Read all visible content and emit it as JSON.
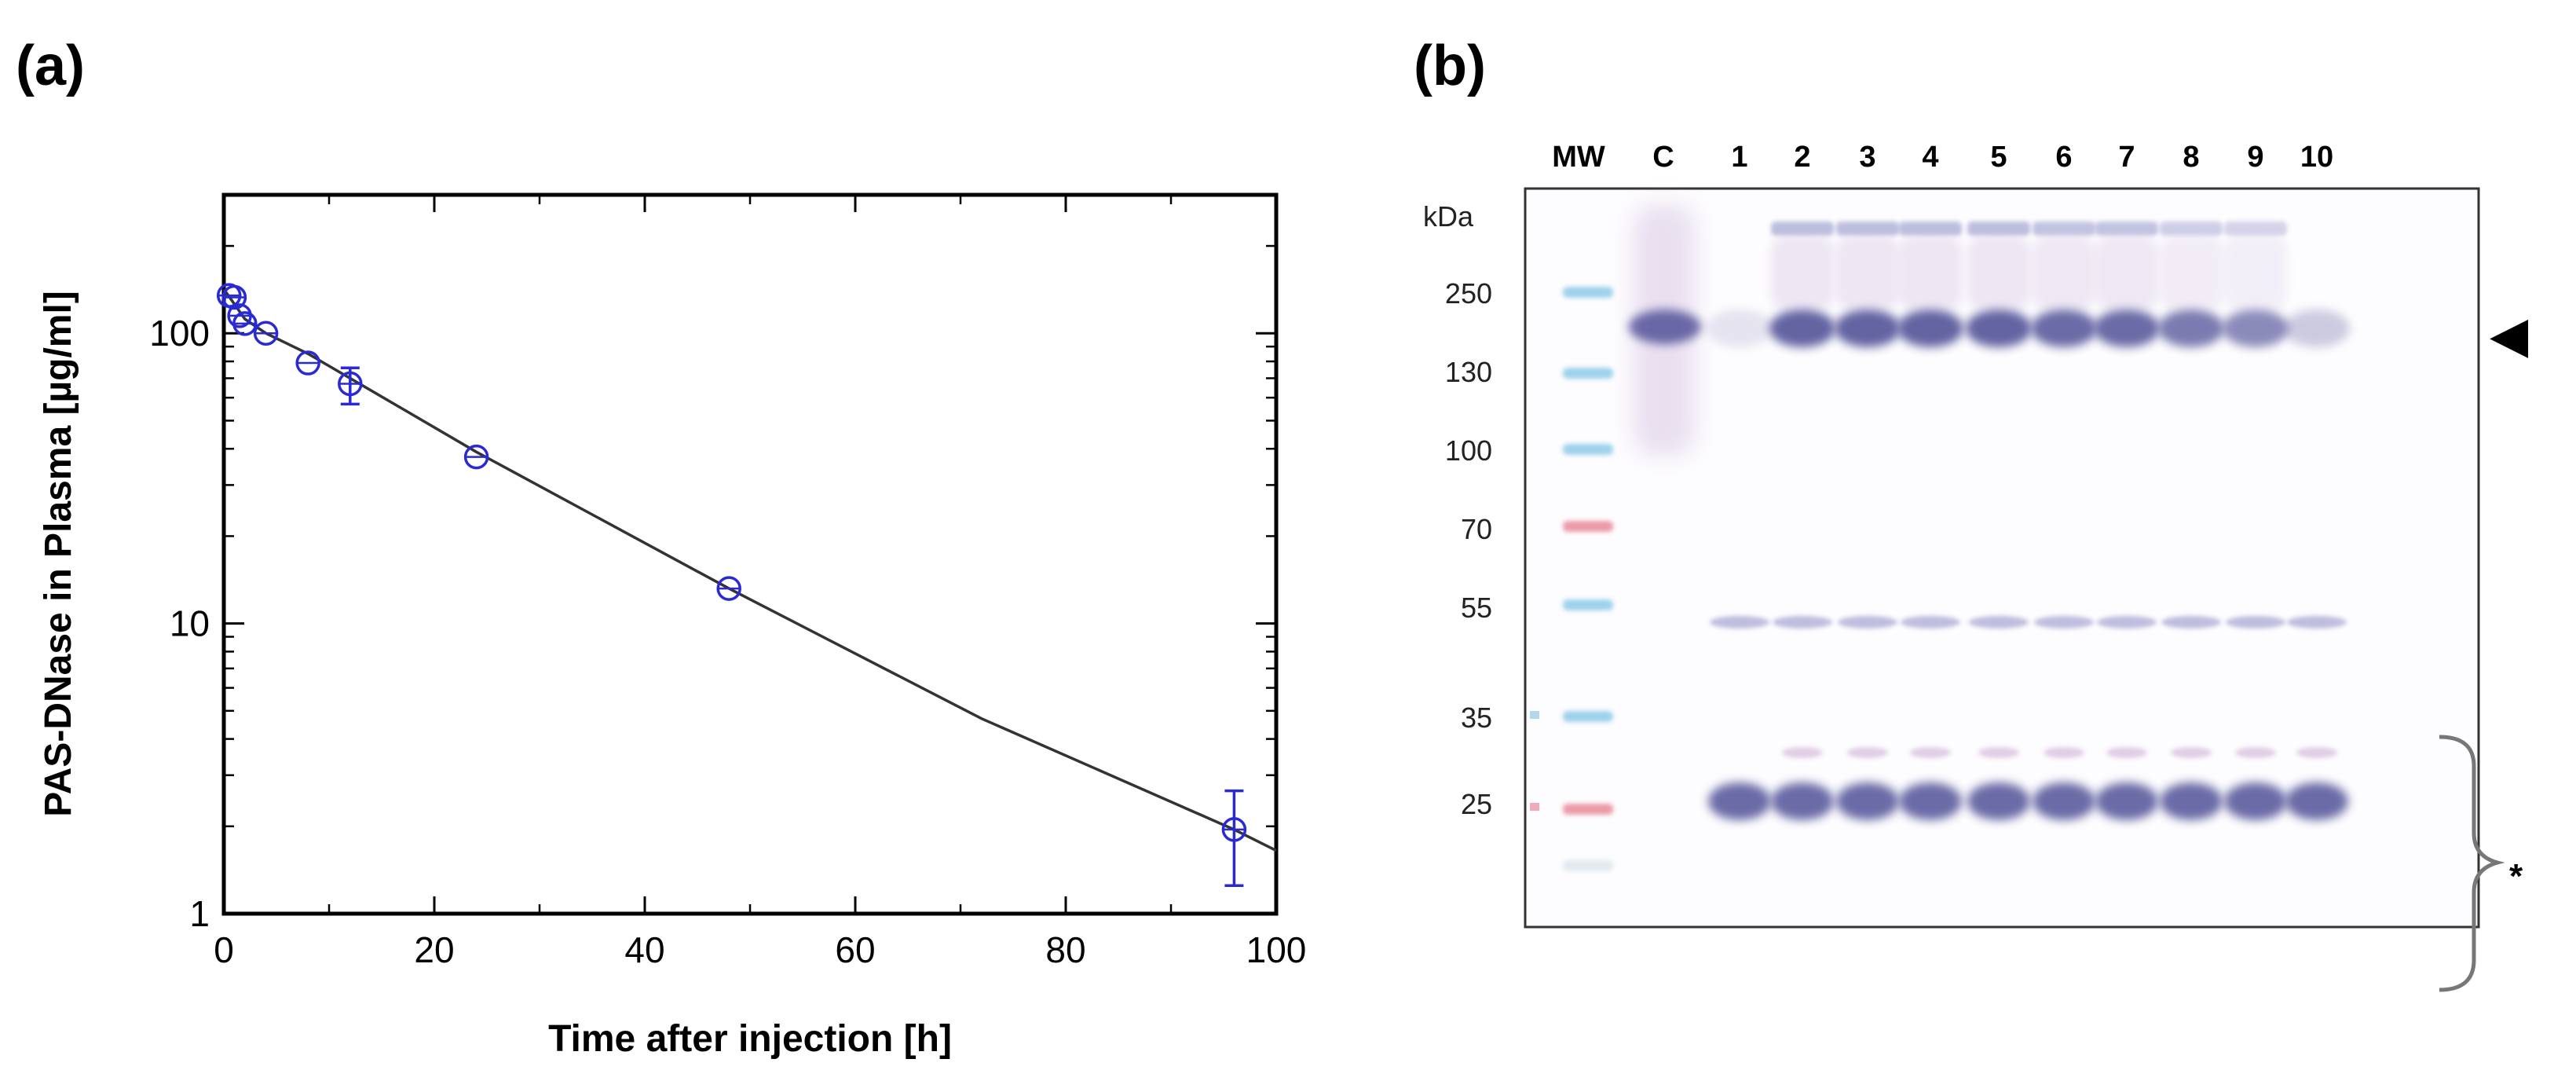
{
  "panel_a": {
    "label": "(a)",
    "chart_data": {
      "type": "scatter",
      "x_label": "Time after injection [h]",
      "y_label": "PAS-DNase in  Plasma [µg/ml]",
      "x_range": [
        0,
        100
      ],
      "y_range": [
        1,
        300
      ],
      "y_scale": "log",
      "x_ticks": [
        0,
        20,
        40,
        60,
        80,
        100
      ],
      "x_tick_labels": [
        "0",
        "20",
        "40",
        "60",
        "80",
        "100"
      ],
      "y_ticks": [
        1,
        10,
        100
      ],
      "y_tick_labels": [
        "1",
        "10",
        "100"
      ],
      "grid": false,
      "points": [
        {
          "x": 0.5,
          "y": 135,
          "err_low": 131,
          "err_high": 139
        },
        {
          "x": 1,
          "y": 133,
          "err_low": 129,
          "err_high": 137
        },
        {
          "x": 1.5,
          "y": 115,
          "err_low": 111,
          "err_high": 119
        },
        {
          "x": 2,
          "y": 108,
          "err_low": 104,
          "err_high": 112
        },
        {
          "x": 4,
          "y": 100,
          "err_low": 96,
          "err_high": 104
        },
        {
          "x": 8,
          "y": 79,
          "err_low": 74,
          "err_high": 84
        },
        {
          "x": 12,
          "y": 67,
          "err_low": 57,
          "err_high": 76
        },
        {
          "x": 24,
          "y": 37.5,
          "err_low": 35.5,
          "err_high": 39.5
        },
        {
          "x": 48,
          "y": 13.2,
          "err_low": 12.8,
          "err_high": 13.6
        },
        {
          "x": 96,
          "y": 1.95,
          "err_low": 1.25,
          "err_high": 2.65
        }
      ],
      "fit_curve": [
        {
          "x": 0,
          "y": 142
        },
        {
          "x": 2,
          "y": 112
        },
        {
          "x": 4,
          "y": 100
        },
        {
          "x": 8,
          "y": 85
        },
        {
          "x": 12,
          "y": 70
        },
        {
          "x": 24,
          "y": 39
        },
        {
          "x": 48,
          "y": 13.2
        },
        {
          "x": 72,
          "y": 4.7
        },
        {
          "x": 96,
          "y": 1.95
        },
        {
          "x": 100,
          "y": 1.65
        }
      ],
      "colors": {
        "points": "#2a2ad4",
        "fit": "#333333",
        "axes": "#000000"
      }
    }
  },
  "panel_b": {
    "label": "(b)",
    "lane_labels": [
      "MW",
      "C",
      "1",
      "2",
      "3",
      "4",
      "5",
      "6",
      "7",
      "8",
      "9",
      "10"
    ],
    "unit_label": "kDa",
    "mw_markers": [
      "250",
      "130",
      "100",
      "70",
      "55",
      "35",
      "25"
    ],
    "mw_marker_values": [
      250,
      130,
      100,
      70,
      55,
      35,
      25
    ],
    "arrow_label": "◀",
    "brace_label": "*",
    "colors": {
      "band": "#8a8ac4",
      "band_dark": "#5c5c9e",
      "mw_blue": "#8ecbe8",
      "mw_red": "#e88a9a"
    }
  }
}
